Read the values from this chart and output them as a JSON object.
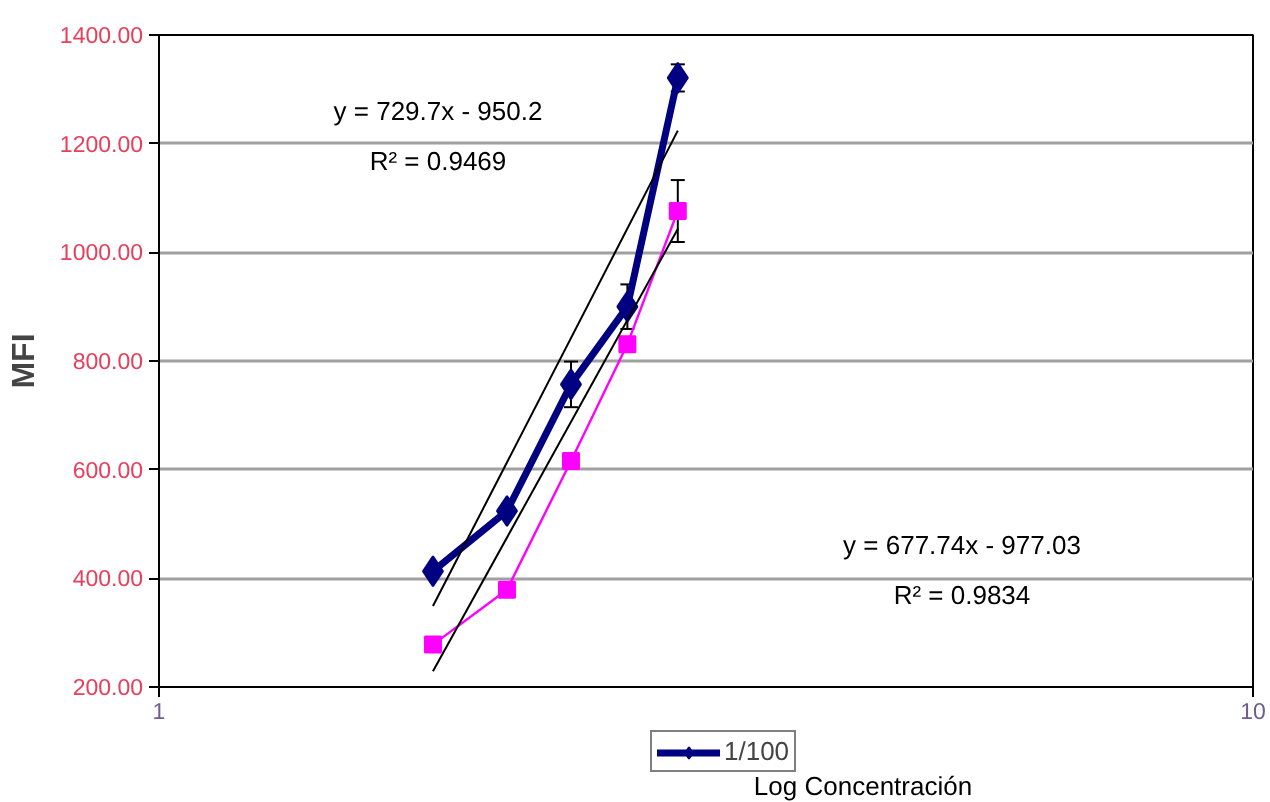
{
  "chart_data": {
    "type": "line",
    "xlabel": "Log Concentración",
    "ylabel": "MFI",
    "log": "x",
    "xlim": [
      1,
      10
    ],
    "ylim": [
      200,
      1400
    ],
    "xticks": [
      1,
      10
    ],
    "yticks": [
      {
        "value": 200,
        "label": "200.00"
      },
      {
        "value": 400,
        "label": "400.00"
      },
      {
        "value": 600,
        "label": "600.00"
      },
      {
        "value": 800,
        "label": "800.00"
      },
      {
        "value": 1000,
        "label": "1000.00"
      },
      {
        "value": 1200,
        "label": "1200.00"
      },
      {
        "value": 1400,
        "label": "1400.00"
      }
    ],
    "grid": "y",
    "legend": "bottom",
    "marker": "diamond",
    "series": [
      {
        "name": "1/100",
        "color": "#000080",
        "x": [
          1.78,
          2.08,
          2.38,
          2.68,
          2.98
        ],
        "values": [
          413,
          524,
          757,
          900,
          1321
        ],
        "errors": [
          null,
          null,
          42,
          41,
          25
        ]
      },
      {
        "color": "#ff00ff",
        "marker": "square",
        "x": [
          1.78,
          2.08,
          2.38,
          2.68,
          2.98
        ],
        "values": [
          278,
          379,
          616,
          831,
          1076
        ],
        "errors": [
          null,
          null,
          null,
          null,
          57
        ]
      },
      {
        "color": "#000000",
        "marker": "none",
        "x": [
          1.78,
          2.98
        ],
        "values": [
          349,
          1224
        ]
      },
      {
        "color": "#000000",
        "marker": "none",
        "x": [
          1.78,
          2.98
        ],
        "values": [
          229,
          1043
        ]
      }
    ],
    "annotations": [
      "y = 729.7x - 950.2",
      "R² = 0.9469",
      "y = 677.74x - 977.03",
      "R² = 0.9834"
    ]
  }
}
